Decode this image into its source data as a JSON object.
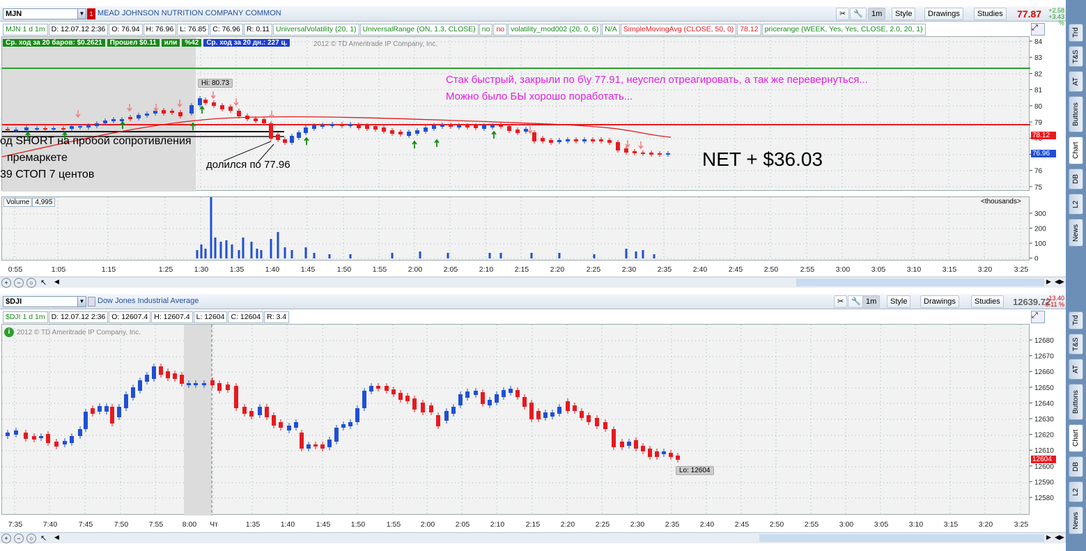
{
  "top": {
    "symbol": "MJN",
    "description": "MEAD JOHNSON NUTRITION COMPANY COMMON",
    "price": "77.87",
    "change": "+2.58",
    "change_pct": "+3.43 %",
    "buttons": {
      "interval": "1m",
      "style": "Style",
      "drawings": "Drawings",
      "studies": "Studies"
    },
    "study_bar": [
      "MJN 1 d 1m",
      "D: 12.07.12 2:36",
      "O: 76.94",
      "H: 76.96",
      "L: 76.85",
      "C: 76.96",
      "R: 0.11",
      "UniversalVolatility (20, 1)",
      "UniversalRange (ON, 1.3, CLOSE)",
      "no",
      "no",
      "volatility_mod002 (20, 0, 6)",
      "N/A",
      "SimpleMovingAvg (CLOSE, 50, 0)",
      "78.12",
      "pricerange (WEEK, Yes, Yes, CLOSE, 2.0, 20, 1)"
    ],
    "labels_bar": [
      "Ср. ход за 20 баров: $0.2621",
      "Прошел $0.11",
      "или",
      "%42",
      "Ср. ход за 20 дн.: 227 ц."
    ],
    "copyright": "2012 © TD Ameritrade IP Company, Inc.",
    "hi_label": "Hi: 80.73",
    "annotation1": "Стак быстрый, закрыли по б\\у 77.91, неуспел отреагировать, а так же перевернуться...",
    "annotation2": "Можно было БЫ хорошо поработать...",
    "net": "NET + $36.03",
    "text_short": "од SHORT на пробой сопротивления",
    "text_premarket": "премаркете",
    "text_stop": "39 СТОП  7 центов",
    "text_partial": "долился по 77.96",
    "y_ticks": [
      "84",
      "83",
      "82",
      "81",
      "80",
      "79",
      "78",
      "77",
      "76",
      "75"
    ],
    "price_tag_sma": "78.12",
    "price_tag_last": "76.96",
    "volume_label": "Volume",
    "volume_value": "4,995",
    "vol_units": "<thousands>",
    "vol_ticks": [
      "300",
      "200",
      "100",
      "0"
    ],
    "time_ticks": [
      "0:55",
      "1:05",
      "1:15",
      "1:25",
      "1:30",
      "1:35",
      "1:40",
      "1:45",
      "1:50",
      "1:55",
      "2:00",
      "2:05",
      "2:10",
      "2:15",
      "2:20",
      "2:25",
      "2:30",
      "2:35",
      "2:40",
      "2:45",
      "2:50",
      "2:55",
      "3:00",
      "3:05",
      "3:10",
      "3:15",
      "3:20",
      "3:25"
    ]
  },
  "bottom": {
    "symbol": "$DJI",
    "description": "Dow Jones Industrial Average",
    "price": "12639.72",
    "change": "-13.40",
    "change_pct": "-0.11 %",
    "buttons": {
      "interval": "1m",
      "style": "Style",
      "drawings": "Drawings",
      "studies": "Studies"
    },
    "study_bar": [
      "$DJI 1 d 1m",
      "D: 12.07.12 2:36",
      "O: 12607.4",
      "H: 12607.4",
      "L: 12604",
      "C: 12604",
      "R: 3.4"
    ],
    "copyright": "2012 © TD Ameritrade IP Company, Inc.",
    "lo_label": "Lo: 12604",
    "price_tag_last": "12604",
    "y_ticks": [
      "12680",
      "12670",
      "12660",
      "12650",
      "12640",
      "12630",
      "12620",
      "12610",
      "12600",
      "12590",
      "12580"
    ],
    "time_ticks": [
      "7:35",
      "7:40",
      "7:45",
      "7:50",
      "7:55",
      "8:00",
      "Чт",
      "1:35",
      "1:40",
      "1:45",
      "1:50",
      "1:55",
      "2:00",
      "2:05",
      "2:10",
      "2:15",
      "2:20",
      "2:25",
      "2:30",
      "2:35",
      "2:40",
      "2:45",
      "2:50",
      "2:55",
      "3:00",
      "3:05",
      "3:10",
      "3:15",
      "3:20",
      "3:25"
    ]
  },
  "side_tabs_top": [
    "Trd",
    "T&S",
    "AT",
    "Buttons",
    "Chart",
    "DB",
    "L2",
    "News"
  ],
  "side_tabs_bottom": [
    "Trd",
    "T&S",
    "AT",
    "Buttons",
    "Chart",
    "DB",
    "L2",
    "News"
  ],
  "colors": {
    "up": "#1f4fd6",
    "down": "#e8191f",
    "sma": "#e21b1b",
    "level": "#e8191f",
    "green_level": "#2e9e2e",
    "annotation": "#e020e0"
  }
}
